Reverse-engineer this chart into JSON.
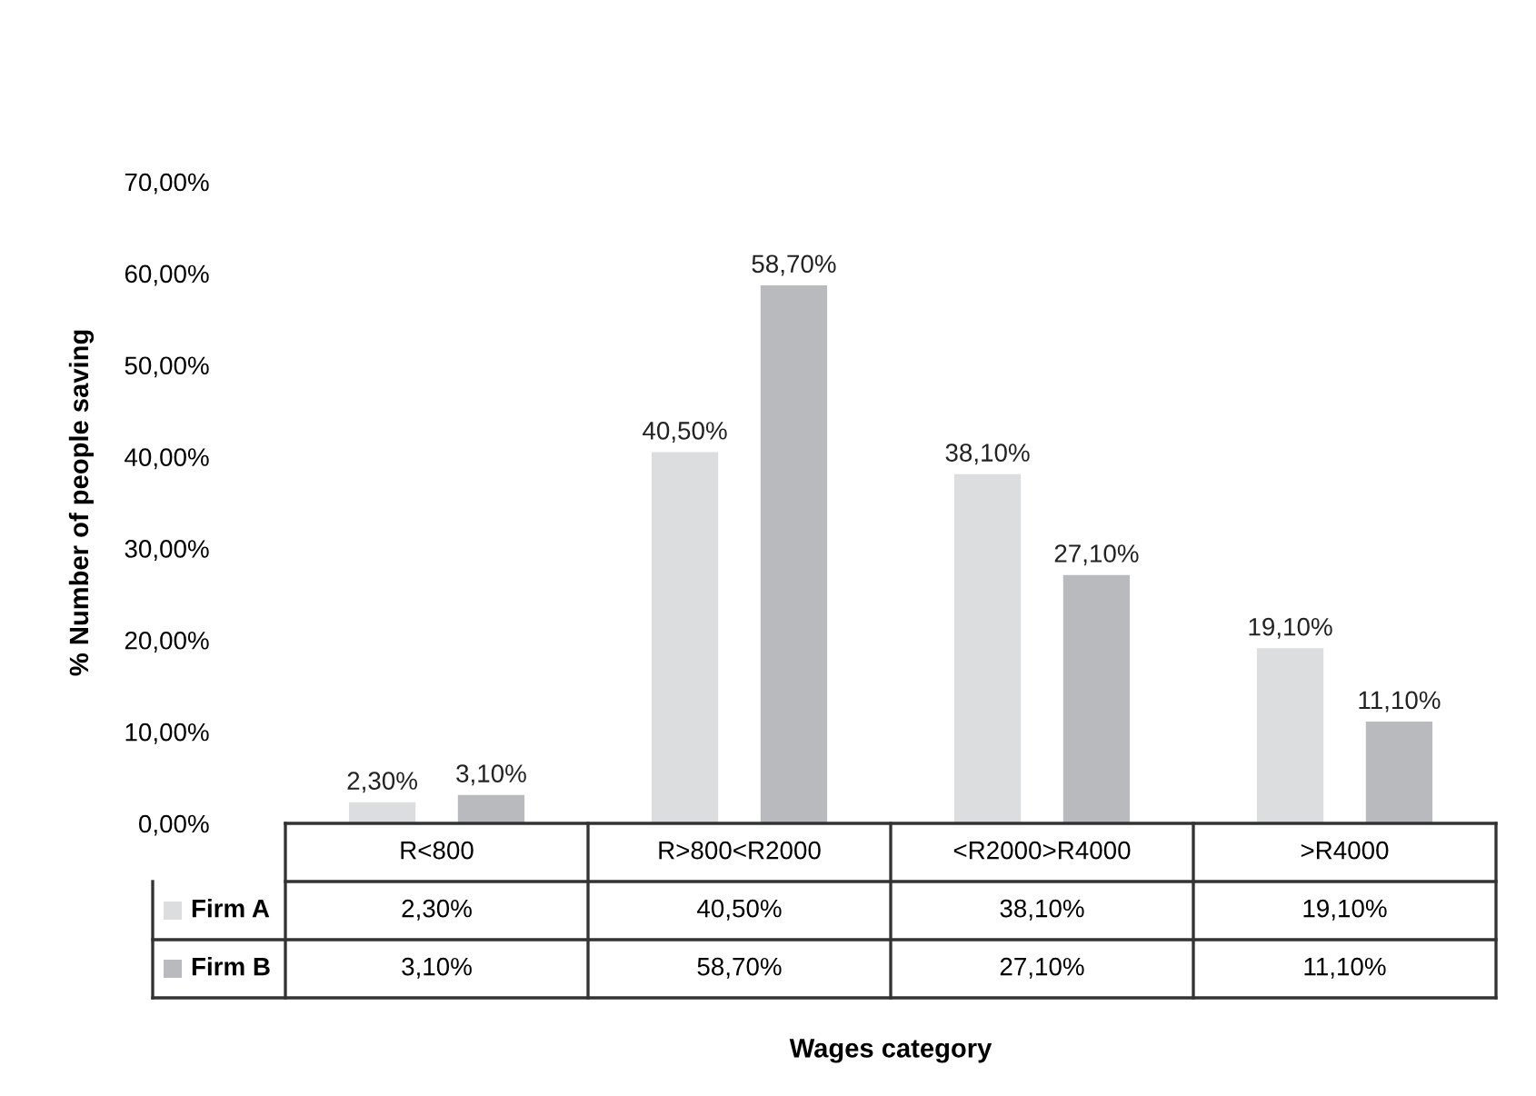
{
  "chart_data": {
    "type": "bar",
    "ylabel": "% Number of people saving",
    "annotations": [
      "Wages category"
    ],
    "categories": [
      "R<800",
      "R>800<R2000",
      "<R2000>R4000",
      ">R4000"
    ],
    "series": [
      {
        "name": "Firm A",
        "color": "#dcdddf",
        "values": [
          2.3,
          40.5,
          38.1,
          19.1
        ],
        "value_labels": [
          "2,30%",
          "40,50%",
          "38,10%",
          "19,10%"
        ]
      },
      {
        "name": "Firm B",
        "color": "#b9babe",
        "values": [
          3.1,
          58.7,
          27.1,
          11.1
        ],
        "value_labels": [
          "3,10%",
          "58,70%",
          "27,10%",
          "11,10%"
        ]
      }
    ],
    "ylim": [
      0,
      70
    ],
    "yticks": [
      {
        "value": 0,
        "label": "0,00%"
      },
      {
        "value": 10,
        "label": "10,00%"
      },
      {
        "value": 20,
        "label": "20,00%"
      },
      {
        "value": 30,
        "label": "30,00%"
      },
      {
        "value": 40,
        "label": "40,00%"
      },
      {
        "value": 50,
        "label": "50,00%"
      },
      {
        "value": 60,
        "label": "60,00%"
      },
      {
        "value": 70,
        "label": "70,00%"
      }
    ],
    "grid": false,
    "legend": "bottom"
  }
}
